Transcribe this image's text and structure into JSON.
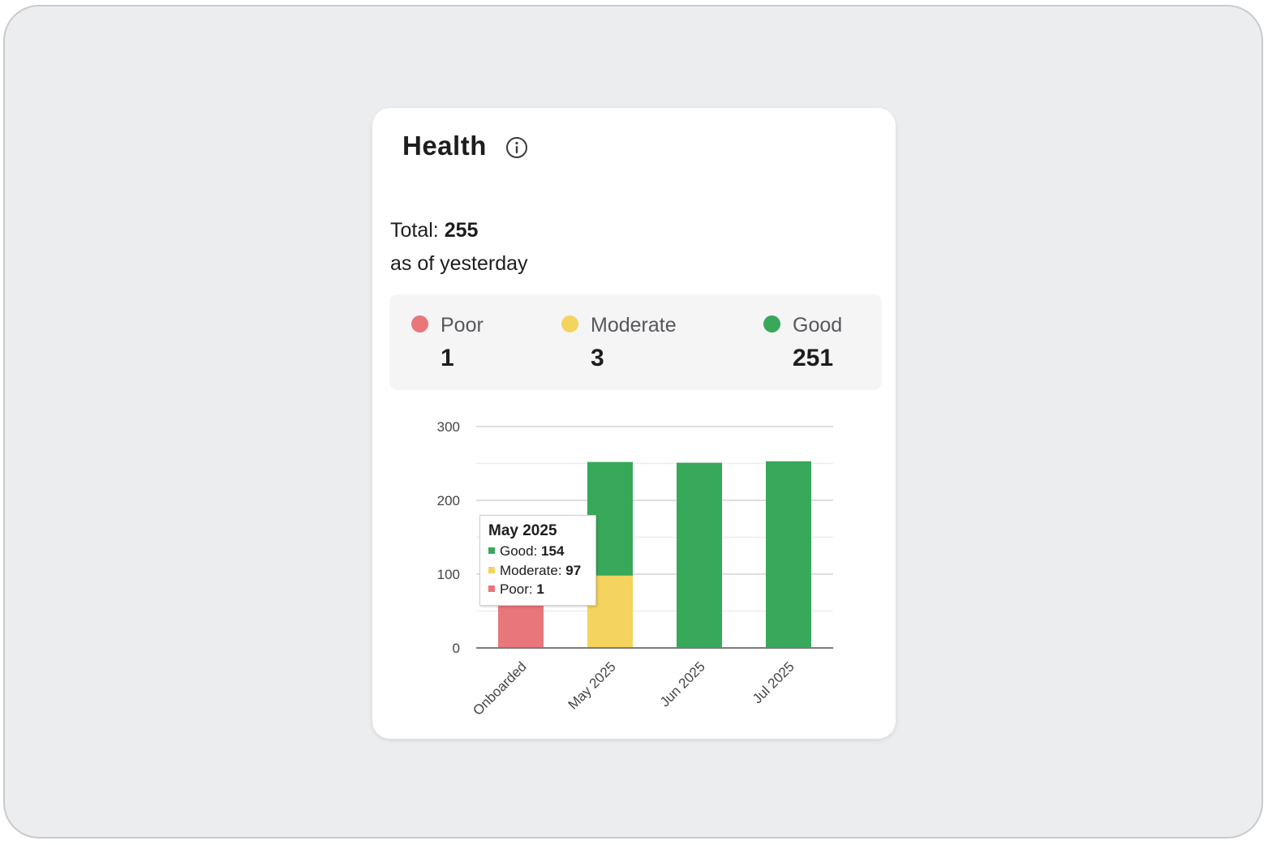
{
  "card": {
    "title": "Health",
    "info_icon": "info-icon",
    "total_label": "Total:",
    "total_value": "255",
    "as_of": "as of yesterday"
  },
  "summary": [
    {
      "label": "Poor",
      "value": "1",
      "color": "#e8767b"
    },
    {
      "label": "Moderate",
      "value": "3",
      "color": "#f4d35e"
    },
    {
      "label": "Good",
      "value": "251",
      "color": "#38a85a"
    }
  ],
  "chart_data": {
    "type": "bar",
    "stacked": true,
    "categories": [
      "Onboarded",
      "May 2025",
      "Jun 2025",
      "Jul 2025"
    ],
    "series": [
      {
        "name": "Poor",
        "color": "#e8767b",
        "values": [
          70,
          1,
          0,
          0
        ]
      },
      {
        "name": "Moderate",
        "color": "#f4d35e",
        "values": [
          0,
          97,
          0,
          0
        ]
      },
      {
        "name": "Good",
        "color": "#38a85a",
        "values": [
          0,
          154,
          251,
          253
        ]
      }
    ],
    "ylim": [
      0,
      300
    ],
    "yticks": [
      "0",
      "100",
      "200",
      "300"
    ],
    "grid": true
  },
  "tooltip": {
    "title": "May 2025",
    "rows": [
      {
        "label": "Good:",
        "value": "154",
        "color": "#38a85a"
      },
      {
        "label": "Moderate:",
        "value": "97",
        "color": "#f4d35e"
      },
      {
        "label": "Poor:",
        "value": "1",
        "color": "#e8767b"
      }
    ]
  }
}
